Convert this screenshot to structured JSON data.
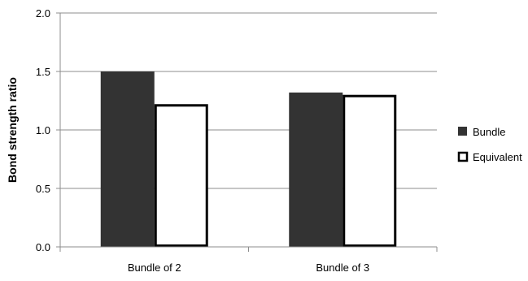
{
  "chart_data": {
    "type": "bar",
    "title": "",
    "xlabel": "",
    "ylabel": "Bond strength ratio",
    "ylim": [
      0,
      2.0
    ],
    "yticks": [
      "0.0",
      "0.5",
      "1.0",
      "1.5",
      "2.0"
    ],
    "categories": [
      "Bundle of 2",
      "Bundle of 3"
    ],
    "series": [
      {
        "name": "Bundle",
        "values": [
          1.5,
          1.32
        ],
        "color": "#333333",
        "style": "filled"
      },
      {
        "name": "Equivalent",
        "values": [
          1.21,
          1.29
        ],
        "color": "#000000",
        "style": "outline"
      }
    ],
    "grid": "horizontal",
    "legend_position": "right"
  }
}
